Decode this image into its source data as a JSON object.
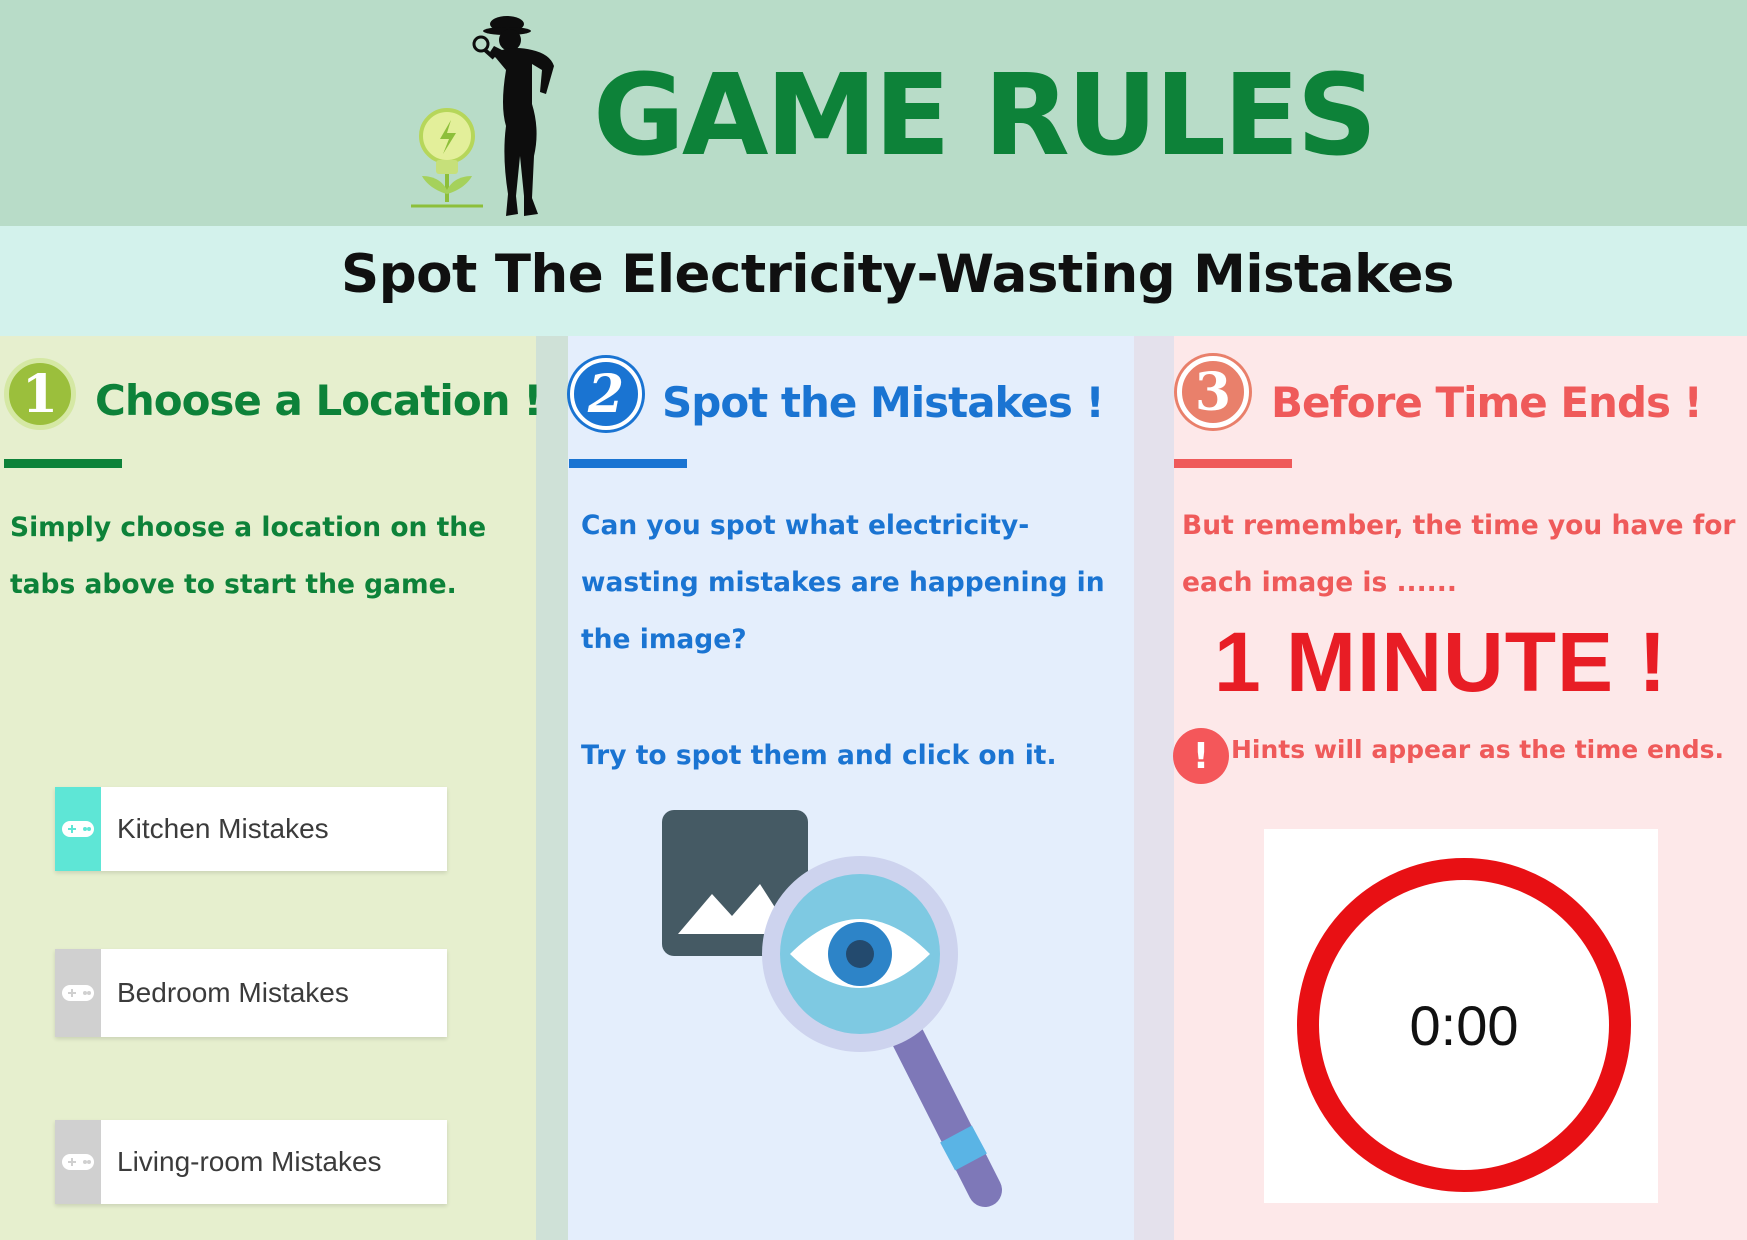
{
  "header": {
    "title": "GAME RULES",
    "subtitle": "Spot The Electricity-Wasting Mistakes",
    "icons": [
      "lightbulb-plant-icon",
      "detective-silhouette-icon"
    ]
  },
  "steps": [
    {
      "number": "1",
      "title": "Choose a Location !",
      "color": "#0d8239",
      "circle_color": "#9bbf3c",
      "lines": [
        "Simply choose a location on the",
        "tabs above to start the game."
      ]
    },
    {
      "number": "2",
      "title": "Spot the Mistakes !",
      "color": "#1a74d2",
      "circle_color": "#1a74d2",
      "lines": [
        "Can you spot what electricity-",
        "wasting mistakes are happening in",
        "the image?"
      ],
      "extra": "Try to spot them and click on it."
    },
    {
      "number": "3",
      "title": "Before Time Ends !",
      "color": "#ef5a5a",
      "circle_color": "#e9806b",
      "lines": [
        "But remember, the time you have for",
        "each image is ......"
      ],
      "big": "1 MINUTE !",
      "big_color": "#e81d25",
      "hint_mark": "!",
      "hint": "Hints will appear as the time ends."
    }
  ],
  "locations": [
    {
      "label": "Kitchen Mistakes",
      "tab_color": "#5ee6d6",
      "icon": "gamepad-icon"
    },
    {
      "label": "Bedroom Mistakes",
      "tab_color": "#d0d0d0",
      "icon": "gamepad-icon"
    },
    {
      "label": "Living-room Mistakes",
      "tab_color": "#d0d0d0",
      "icon": "gamepad-icon"
    }
  ],
  "illustration": {
    "icons": [
      "image-icon",
      "magnifier-eye-icon"
    ]
  },
  "timer": {
    "value": "0:00",
    "ring_color": "#e81014"
  }
}
